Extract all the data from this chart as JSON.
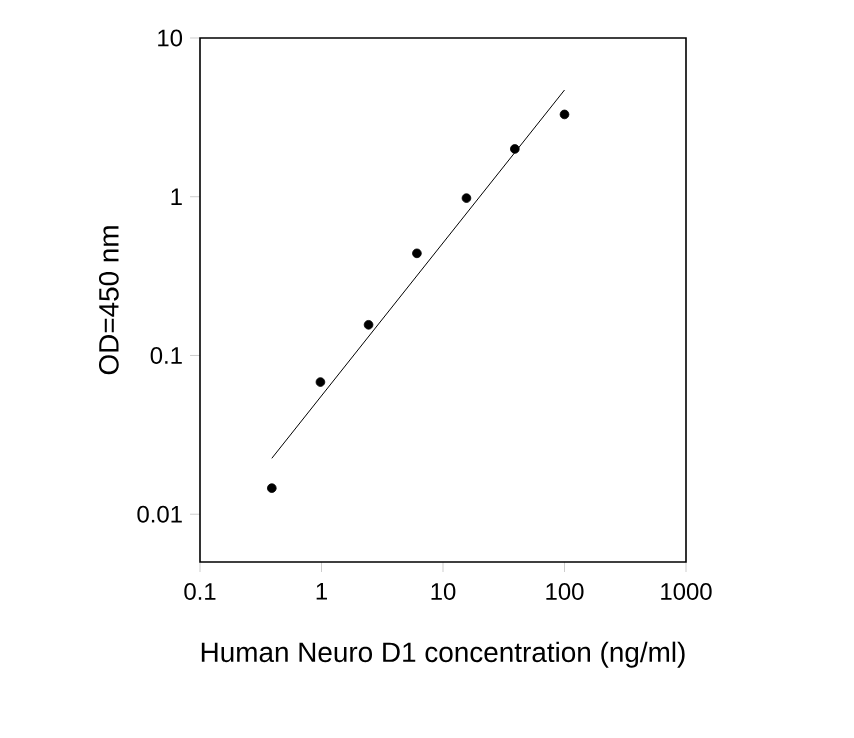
{
  "chart_data": {
    "type": "scatter",
    "xlabel": "Human Neuro D1 concentration (ng/ml)",
    "ylabel": "OD=450 nm",
    "log": "xy",
    "xlim": [
      0.1,
      1000
    ],
    "ylim": [
      0.005,
      10
    ],
    "xticks": [
      0.1,
      1,
      10,
      100,
      1000
    ],
    "yticks": [
      0.01,
      0.1,
      1,
      10
    ],
    "grid": false,
    "series": [
      {
        "color": "#000000",
        "marker": "circle",
        "x": [
          0.39,
          0.98,
          2.44,
          6.1,
          15.6,
          39,
          100
        ],
        "values": [
          0.0146,
          0.068,
          0.156,
          0.44,
          0.98,
          2.0,
          3.3
        ]
      },
      {
        "type": "line",
        "color": "#000000",
        "marker": "none",
        "x": [
          0.39,
          100
        ],
        "values": [
          0.0225,
          4.7
        ]
      }
    ]
  }
}
